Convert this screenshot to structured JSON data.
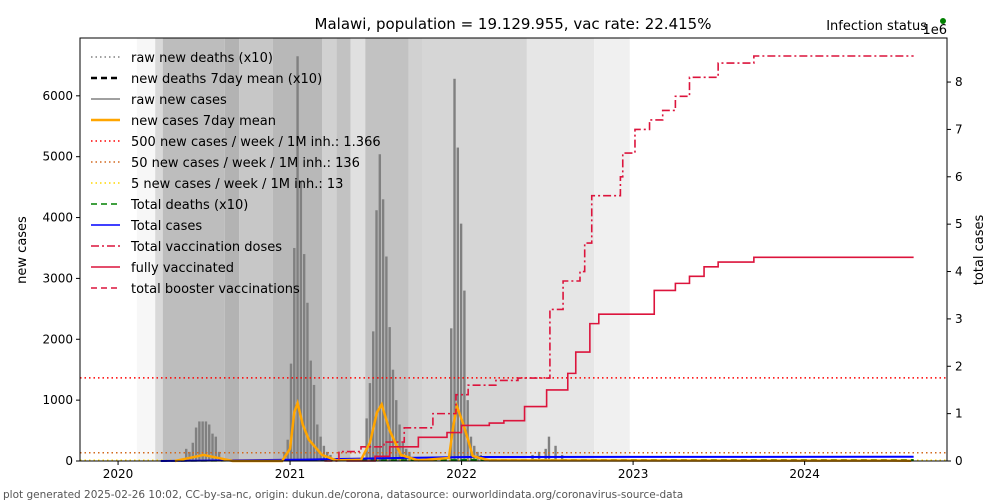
{
  "chart_data": {
    "type": "bar+line",
    "title": "Malawi, population = 19.129.955, vac rate: 22.415%",
    "status_label": "Infection status",
    "status_color": "#008000",
    "ylabel_left": "new cases",
    "ylabel_right": "total cases",
    "right_multiplier": "1e6",
    "ylim_left": [
      0,
      6950
    ],
    "ylim_right": [
      0,
      8.93
    ],
    "xlim": [
      "2019-10-12",
      "2024-10-30"
    ],
    "xticks": [
      "2020",
      "2021",
      "2022",
      "2023",
      "2024"
    ],
    "yticks_left": [
      0,
      1000,
      2000,
      3000,
      4000,
      5000,
      6000
    ],
    "yticks_right": [
      0,
      1,
      2,
      3,
      4,
      5,
      6,
      7,
      8
    ],
    "legend_position": "upper-left",
    "legend": [
      {
        "label": "raw new deaths (x10)",
        "color": "#808080",
        "style": "dotted"
      },
      {
        "label": "new deaths 7day mean (x10)",
        "color": "#000000",
        "style": "dashed"
      },
      {
        "label": "raw new cases",
        "color": "#808080",
        "style": "solid"
      },
      {
        "label": "new cases 7day mean",
        "color": "#ffa500",
        "style": "solid"
      },
      {
        "label": "500 new cases / week / 1M inh.: 1.366",
        "color": "#ff0000",
        "style": "dotted"
      },
      {
        "label": "50 new cases / week / 1M inh.: 136",
        "color": "#d2691e",
        "style": "dotted"
      },
      {
        "label": "5 new cases / week / 1M inh.: 13",
        "color": "#ffd700",
        "style": "dotted"
      },
      {
        "label": "Total deaths (x10)",
        "color": "#008000",
        "style": "dashed"
      },
      {
        "label": "Total cases",
        "color": "#0000ff",
        "style": "solid"
      },
      {
        "label": "Total vaccination doses",
        "color": "#dc143c",
        "style": "dashdot"
      },
      {
        "label": "fully vaccinated",
        "color": "#dc143c",
        "style": "solid"
      },
      {
        "label": "total booster vaccinations",
        "color": "#dc143c",
        "style": "dashed"
      }
    ],
    "thresholds": [
      1366,
      136,
      13
    ],
    "background_bands": [
      {
        "start": "2020-02-10",
        "end": "2020-03-20",
        "shade": 0.97
      },
      {
        "start": "2020-03-20",
        "end": "2020-04-05",
        "shade": 0.85
      },
      {
        "start": "2020-04-05",
        "end": "2020-08-15",
        "shade": 0.74
      },
      {
        "start": "2020-08-15",
        "end": "2020-09-15",
        "shade": 0.7
      },
      {
        "start": "2020-09-15",
        "end": "2020-11-25",
        "shade": 0.78
      },
      {
        "start": "2020-11-25",
        "end": "2021-03-10",
        "shade": 0.72
      },
      {
        "start": "2021-03-10",
        "end": "2021-04-10",
        "shade": 0.82
      },
      {
        "start": "2021-04-10",
        "end": "2021-05-10",
        "shade": 0.76
      },
      {
        "start": "2021-05-10",
        "end": "2021-06-10",
        "shade": 0.88
      },
      {
        "start": "2021-06-10",
        "end": "2021-09-10",
        "shade": 0.76
      },
      {
        "start": "2021-09-10",
        "end": "2021-10-10",
        "shade": 0.82
      },
      {
        "start": "2021-10-10",
        "end": "2022-05-20",
        "shade": 0.84
      },
      {
        "start": "2022-05-20",
        "end": "2022-10-10",
        "shade": 0.9
      },
      {
        "start": "2022-10-10",
        "end": "2022-12-25",
        "shade": 0.94
      },
      {
        "start": "2022-12-25",
        "end": "2024-10-30",
        "shade": 1.0
      }
    ],
    "raw_new_cases": [
      [
        "2020-05-25",
        200
      ],
      [
        "2020-06-01",
        150
      ],
      [
        "2020-06-08",
        300
      ],
      [
        "2020-06-15",
        550
      ],
      [
        "2020-06-22",
        650
      ],
      [
        "2020-06-29",
        650
      ],
      [
        "2020-07-06",
        650
      ],
      [
        "2020-07-13",
        600
      ],
      [
        "2020-07-20",
        450
      ],
      [
        "2020-07-27",
        400
      ],
      [
        "2020-08-03",
        150
      ],
      [
        "2020-08-10",
        50
      ],
      [
        "2020-12-20",
        150
      ],
      [
        "2020-12-27",
        350
      ],
      [
        "2021-01-03",
        1600
      ],
      [
        "2021-01-10",
        3500
      ],
      [
        "2021-01-17",
        6650
      ],
      [
        "2021-01-24",
        4600
      ],
      [
        "2021-01-31",
        3400
      ],
      [
        "2021-02-07",
        2600
      ],
      [
        "2021-02-14",
        1650
      ],
      [
        "2021-02-21",
        1250
      ],
      [
        "2021-02-28",
        600
      ],
      [
        "2021-03-07",
        400
      ],
      [
        "2021-03-14",
        250
      ],
      [
        "2021-03-21",
        150
      ],
      [
        "2021-03-28",
        100
      ],
      [
        "2021-06-13",
        700
      ],
      [
        "2021-06-20",
        1280
      ],
      [
        "2021-06-27",
        2130
      ],
      [
        "2021-07-04",
        4120
      ],
      [
        "2021-07-11",
        5040
      ],
      [
        "2021-07-18",
        4300
      ],
      [
        "2021-07-25",
        3360
      ],
      [
        "2021-08-01",
        2200
      ],
      [
        "2021-08-08",
        1500
      ],
      [
        "2021-08-15",
        1000
      ],
      [
        "2021-08-22",
        600
      ],
      [
        "2021-08-29",
        300
      ],
      [
        "2021-09-05",
        200
      ],
      [
        "2021-09-12",
        150
      ],
      [
        "2021-12-10",
        2180
      ],
      [
        "2021-12-17",
        6280
      ],
      [
        "2021-12-24",
        5150
      ],
      [
        "2021-12-31",
        3900
      ],
      [
        "2022-01-07",
        2800
      ],
      [
        "2022-01-14",
        1000
      ],
      [
        "2022-01-21",
        400
      ],
      [
        "2022-01-28",
        250
      ],
      [
        "2022-02-04",
        150
      ],
      [
        "2022-02-11",
        100
      ],
      [
        "2022-06-01",
        100
      ],
      [
        "2022-06-15",
        150
      ],
      [
        "2022-06-29",
        200
      ],
      [
        "2022-07-06",
        400
      ],
      [
        "2022-07-20",
        250
      ],
      [
        "2022-08-03",
        100
      ]
    ],
    "new_cases_7day_mean": [
      [
        "2020-05-01",
        0
      ],
      [
        "2020-06-01",
        50
      ],
      [
        "2020-07-01",
        100
      ],
      [
        "2020-08-01",
        50
      ],
      [
        "2020-09-01",
        0
      ],
      [
        "2020-12-15",
        0
      ],
      [
        "2021-01-01",
        200
      ],
      [
        "2021-01-10",
        800
      ],
      [
        "2021-01-17",
        950
      ],
      [
        "2021-01-28",
        600
      ],
      [
        "2021-02-10",
        350
      ],
      [
        "2021-03-10",
        100
      ],
      [
        "2021-04-10",
        10
      ],
      [
        "2021-06-01",
        20
      ],
      [
        "2021-06-20",
        300
      ],
      [
        "2021-07-05",
        800
      ],
      [
        "2021-07-15",
        930
      ],
      [
        "2021-08-01",
        500
      ],
      [
        "2021-08-25",
        100
      ],
      [
        "2021-10-01",
        10
      ],
      [
        "2021-12-05",
        50
      ],
      [
        "2021-12-15",
        600
      ],
      [
        "2021-12-22",
        900
      ],
      [
        "2022-01-05",
        600
      ],
      [
        "2022-01-25",
        80
      ],
      [
        "2022-03-01",
        10
      ],
      [
        "2024-08-15",
        5
      ]
    ],
    "total_vaccination_doses_millions": [
      [
        "2021-03-15",
        0
      ],
      [
        "2021-04-15",
        0.2
      ],
      [
        "2021-06-01",
        0.3
      ],
      [
        "2021-07-20",
        0.4
      ],
      [
        "2021-09-01",
        0.7
      ],
      [
        "2021-11-01",
        1.0
      ],
      [
        "2021-12-20",
        1.4
      ],
      [
        "2022-01-15",
        1.6
      ],
      [
        "2022-03-15",
        1.7
      ],
      [
        "2022-05-01",
        1.75
      ],
      [
        "2022-06-30",
        1.75
      ],
      [
        "2022-07-08",
        3.2
      ],
      [
        "2022-08-01",
        3.2
      ],
      [
        "2022-08-05",
        3.8
      ],
      [
        "2022-09-10",
        4.0
      ],
      [
        "2022-09-20",
        4.6
      ],
      [
        "2022-10-05",
        5.6
      ],
      [
        "2022-12-05",
        6.0
      ],
      [
        "2022-12-10",
        6.5
      ],
      [
        "2023-01-05",
        7.0
      ],
      [
        "2023-02-05",
        7.2
      ],
      [
        "2023-03-05",
        7.4
      ],
      [
        "2023-04-01",
        7.7
      ],
      [
        "2023-05-01",
        8.1
      ],
      [
        "2023-07-01",
        8.4
      ],
      [
        "2023-09-15",
        8.55
      ],
      [
        "2024-08-20",
        8.55
      ]
    ],
    "fully_vaccinated_millions": [
      [
        "2021-05-01",
        0
      ],
      [
        "2021-07-01",
        0.1
      ],
      [
        "2021-08-01",
        0.3
      ],
      [
        "2021-10-01",
        0.5
      ],
      [
        "2021-12-01",
        0.6
      ],
      [
        "2022-01-01",
        0.75
      ],
      [
        "2022-03-01",
        0.8
      ],
      [
        "2022-04-01",
        0.85
      ],
      [
        "2022-05-15",
        1.15
      ],
      [
        "2022-07-01",
        1.5
      ],
      [
        "2022-08-15",
        1.85
      ],
      [
        "2022-09-01",
        2.3
      ],
      [
        "2022-10-01",
        2.9
      ],
      [
        "2022-10-20",
        3.1
      ],
      [
        "2023-02-10",
        3.1
      ],
      [
        "2023-02-15",
        3.6
      ],
      [
        "2023-04-01",
        3.75
      ],
      [
        "2023-05-01",
        3.9
      ],
      [
        "2023-06-01",
        4.1
      ],
      [
        "2023-07-01",
        4.2
      ],
      [
        "2023-09-15",
        4.3
      ],
      [
        "2024-08-20",
        4.3
      ]
    ],
    "total_cases_millions": [
      [
        "2020-04-01",
        0
      ],
      [
        "2021-02-01",
        0.03
      ],
      [
        "2021-08-01",
        0.06
      ],
      [
        "2022-01-15",
        0.085
      ],
      [
        "2024-08-20",
        0.089
      ]
    ],
    "total_deaths_x10_millions": [
      [
        "2020-04-01",
        0
      ],
      [
        "2021-03-01",
        0.01
      ],
      [
        "2021-09-01",
        0.02
      ],
      [
        "2022-02-01",
        0.026
      ],
      [
        "2024-08-20",
        0.027
      ]
    ]
  },
  "footer": "plot generated 2025-02-26 10:02, CC-by-sa-nc, origin: dukun.de/corona, datasource: ourworldindata.org/coronavirus-source-data"
}
